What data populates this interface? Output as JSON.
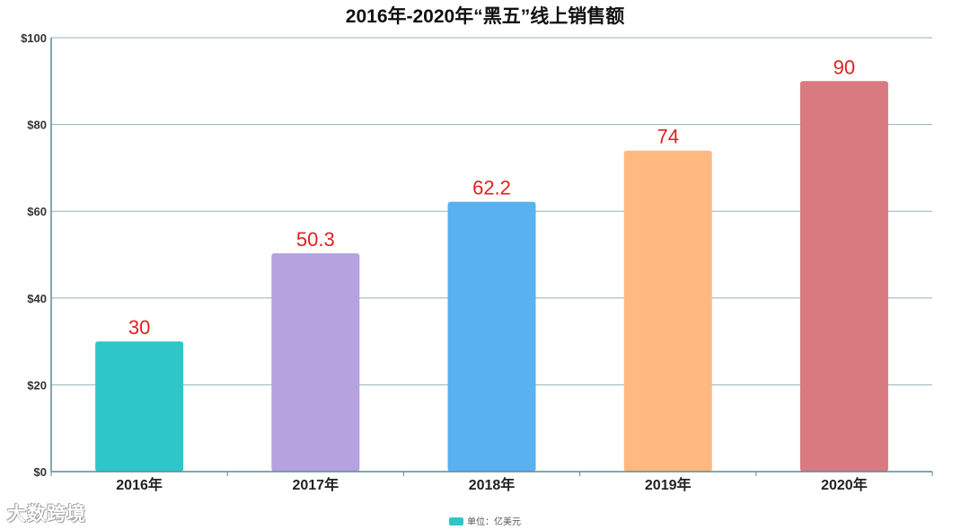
{
  "chart_data": {
    "type": "bar",
    "title": "2016年-2020年“黑五”线上销售额",
    "categories": [
      "2016年",
      "2017年",
      "2018年",
      "2019年",
      "2020年"
    ],
    "values": [
      30,
      50.3,
      62.2,
      74,
      90
    ],
    "data_labels": [
      "30",
      "50.3",
      "62.2",
      "74",
      "90"
    ],
    "colors": [
      "#2ec7c9",
      "#b6a2de",
      "#5ab1ef",
      "#ffb980",
      "#d87a80"
    ],
    "ylim": [
      0,
      100
    ],
    "yticks": [
      0,
      20,
      40,
      60,
      80,
      100
    ],
    "ytick_labels": [
      "$0",
      "$20",
      "$40",
      "$60",
      "$80",
      "$100"
    ],
    "grid": true,
    "legend": {
      "position": "bottom-center",
      "label": "单位：亿美元",
      "color": "#2ec7c9"
    },
    "data_label_color": "#e02020"
  },
  "watermark": "大数跨境"
}
